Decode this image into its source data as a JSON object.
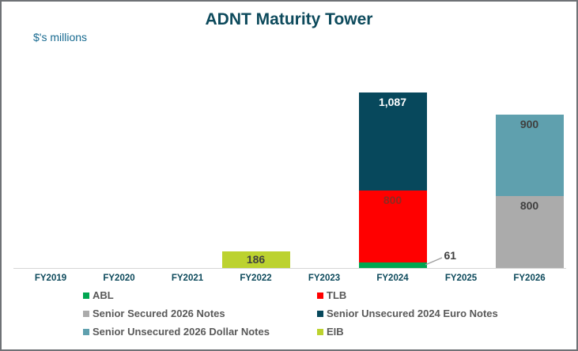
{
  "header": {
    "title": "ADNT Maturity Tower",
    "units_label": "$'s millions"
  },
  "colors": {
    "title_text": "#0d4a5c",
    "units_text": "#186a90",
    "axis_label_text": "#0d4a5c",
    "legend_text": "#595959",
    "dark_data_label": "#404040",
    "axis_line": "#d6d6d6",
    "frame_border": "#6f7276"
  },
  "chart_data": {
    "type": "bar",
    "stacked": true,
    "title": "ADNT Maturity Tower",
    "ylabel": "$'s millions",
    "grid": false,
    "legend_position": "bottom",
    "categories": [
      "FY2019",
      "FY2020",
      "FY2021",
      "FY2022",
      "FY2023",
      "FY2024",
      "FY2025",
      "FY2026"
    ],
    "series": [
      {
        "name": "ABL",
        "color": "#00a651",
        "values": [
          0,
          0,
          0,
          0,
          0,
          61,
          0,
          0
        ],
        "label_style": "callout",
        "label_color": "#404040"
      },
      {
        "name": "TLB",
        "color": "#ff0000",
        "values": [
          0,
          0,
          0,
          0,
          0,
          800,
          0,
          0
        ],
        "label_style": "inside",
        "label_color": "#8f2a21"
      },
      {
        "name": "Senior Secured 2026 Notes",
        "color": "#ababab",
        "values": [
          0,
          0,
          0,
          0,
          0,
          0,
          0,
          800
        ],
        "label_style": "inside",
        "label_color": "#404040"
      },
      {
        "name": "Senior Unsecured 2024 Euro Notes",
        "color": "#07485c",
        "values": [
          0,
          0,
          0,
          0,
          0,
          1087,
          0,
          0
        ],
        "label_style": "inside",
        "label_color": "#ffffff"
      },
      {
        "name": "Senior Unsecured 2026 Dollar Notes",
        "color": "#5fa0ae",
        "values": [
          0,
          0,
          0,
          0,
          0,
          0,
          0,
          900
        ],
        "label_style": "inside",
        "label_color": "#404040"
      },
      {
        "name": "EIB",
        "color": "#bcd22f",
        "values": [
          0,
          0,
          0,
          186,
          0,
          0,
          0,
          0
        ],
        "label_style": "inside",
        "label_color": "#404040"
      }
    ],
    "data_labels": {
      "FY2022_EIB": "186",
      "FY2024_ABL": "61",
      "FY2024_TLB": "800",
      "FY2024_Senior_Unsecured_2024_Euro_Notes": "1,087",
      "FY2026_Senior_Secured_2026_Notes": "800",
      "FY2026_Senior_Unsecured_2026_Dollar_Notes": "900"
    }
  }
}
